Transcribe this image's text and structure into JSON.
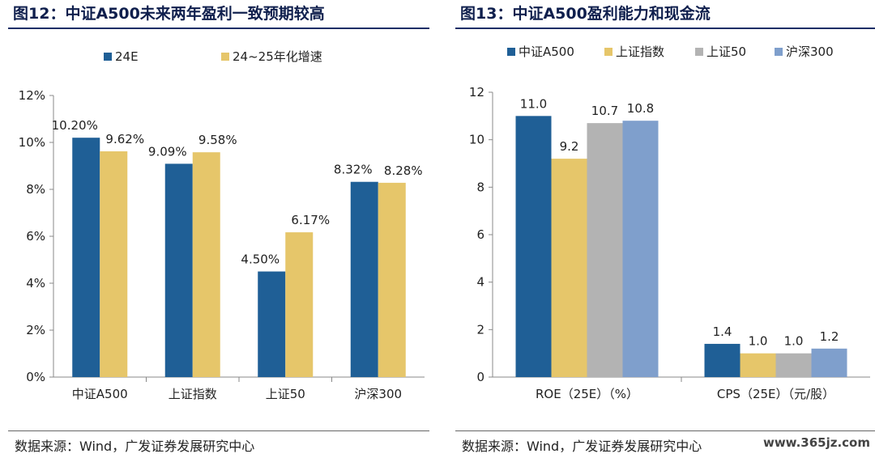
{
  "chart_data": [
    {
      "type": "bar",
      "title": "图12：中证A500未来两年盈利一致预期较高",
      "categories": [
        "中证A500",
        "上证指数",
        "上证50",
        "沪深300"
      ],
      "series": [
        {
          "name": "24E",
          "color": "#1f5f96",
          "values": [
            10.2,
            9.09,
            4.5,
            8.32
          ],
          "labels": [
            "10.20%",
            "9.09%",
            "4.50%",
            "8.32%"
          ]
        },
        {
          "name": "24~25年化增速",
          "color": "#e6c66a",
          "values": [
            9.62,
            9.58,
            6.17,
            8.28
          ],
          "labels": [
            "9.62%",
            "9.58%",
            "6.17%",
            "8.28%"
          ]
        }
      ],
      "ylim": [
        0,
        12
      ],
      "yticks": [
        "0%",
        "2%",
        "4%",
        "6%",
        "8%",
        "10%",
        "12%"
      ],
      "legend_position": "top",
      "grid": false,
      "source": "数据来源：Wind，广发证券发展研究中心"
    },
    {
      "type": "bar",
      "title": "图13：中证A500盈利能力和现金流",
      "categories": [
        "ROE（25E）（%）",
        "CPS（25E）（元/股）"
      ],
      "series": [
        {
          "name": "中证A500",
          "color": "#1f5f96",
          "values": [
            11.0,
            1.4
          ],
          "labels": [
            "11.0",
            "1.4"
          ]
        },
        {
          "name": "上证指数",
          "color": "#e6c66a",
          "values": [
            9.2,
            1.0
          ],
          "labels": [
            "9.2",
            "1.0"
          ]
        },
        {
          "name": "上证50",
          "color": "#b3b3b3",
          "values": [
            10.7,
            1.0
          ],
          "labels": [
            "10.7",
            "1.0"
          ]
        },
        {
          "name": "沪深300",
          "color": "#7f9fcc",
          "values": [
            10.8,
            1.2
          ],
          "labels": [
            "10.8",
            "1.2"
          ]
        }
      ],
      "ylim": [
        0,
        12
      ],
      "yticks": [
        "0",
        "2",
        "4",
        "6",
        "8",
        "10",
        "12"
      ],
      "legend_position": "top",
      "grid": false,
      "source": "数据来源：Wind，广发证券发展研究中心"
    }
  ],
  "watermark": "www.365jz.com"
}
